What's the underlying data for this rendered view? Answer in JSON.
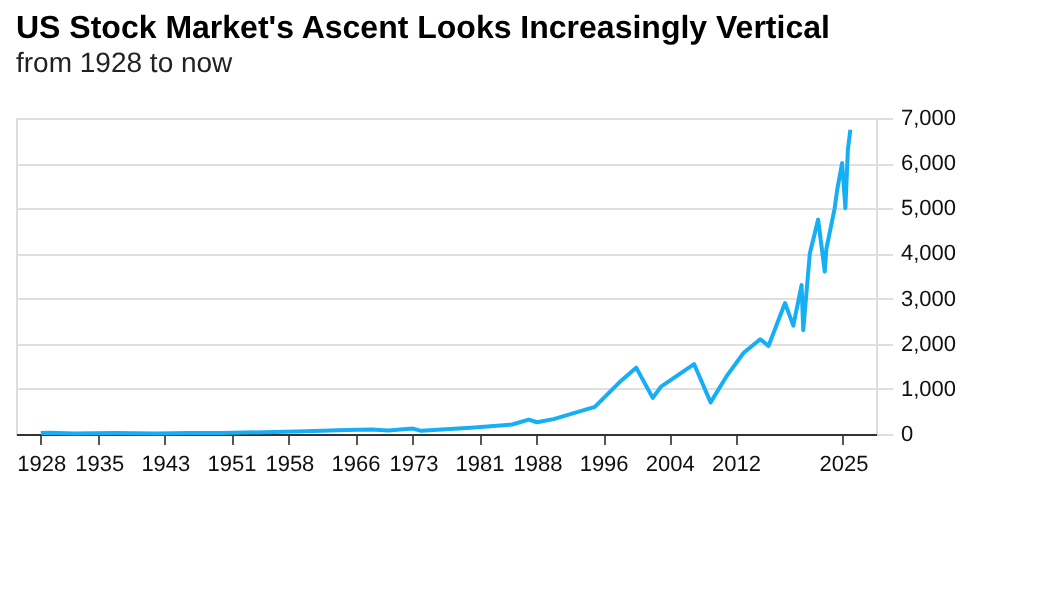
{
  "chart_data": {
    "type": "line",
    "title": "US Stock Market's Ascent Looks Increasingly Vertical",
    "subtitle": "from 1928 to now",
    "x": [
      1928,
      1929,
      1932,
      1937,
      1942,
      1946,
      1950,
      1955,
      1960,
      1965,
      1968,
      1970,
      1973,
      1974,
      1980,
      1985,
      1987,
      1988,
      1990,
      1995,
      1998,
      2000,
      2002,
      2003,
      2007,
      2009,
      2011,
      2013,
      2015,
      2016,
      2018,
      2019,
      2020,
      2020.2,
      2021,
      2022,
      2022.8,
      2023,
      2024,
      2024.3,
      2024.9,
      2025.3,
      2025.6,
      2025.9
    ],
    "series": [
      {
        "color": "#16aef5",
        "values": [
          20,
          30,
          10,
          20,
          10,
          20,
          20,
          40,
          60,
          90,
          100,
          80,
          120,
          70,
          140,
          210,
          320,
          260,
          330,
          600,
          1150,
          1470,
          800,
          1050,
          1550,
          700,
          1300,
          1800,
          2100,
          1950,
          2900,
          2400,
          3300,
          2300,
          4000,
          4750,
          3600,
          4100,
          5000,
          5400,
          6000,
          5000,
          6300,
          6740
        ]
      }
    ],
    "xlim": [
      1925,
      2029
    ],
    "xticks": [
      1928,
      1935,
      1943,
      1951,
      1958,
      1966,
      1973,
      1981,
      1988,
      1996,
      2004,
      2012,
      2025
    ],
    "ylim": [
      0,
      7000
    ],
    "yticks": [
      0,
      {
        "value": 1000,
        "label": "1,000"
      },
      {
        "value": 2000,
        "label": "2,000"
      },
      {
        "value": 3000,
        "label": "3,000"
      },
      {
        "value": 4000,
        "label": "4,000"
      },
      {
        "value": 5000,
        "label": "5,000"
      },
      {
        "value": 6000,
        "label": "6,000"
      },
      {
        "value": 7000,
        "label": "7,000"
      }
    ],
    "grid": "y",
    "legend": false,
    "line_style": "solid",
    "marker": "none"
  }
}
